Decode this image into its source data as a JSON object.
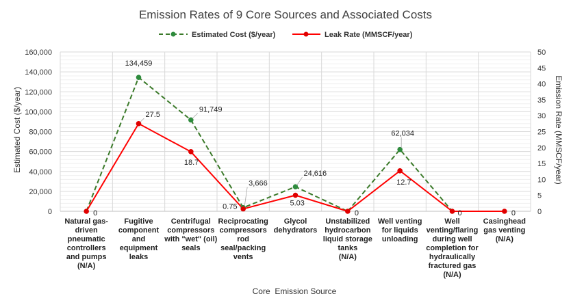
{
  "chart_data": {
    "type": "line",
    "title": "Emission Rates of 9 Core Sources and Associated Costs",
    "xlabel": "Core  Emission Source",
    "ylabel_left": "Estimated Cost ($/year)",
    "ylabel_right": "Emission Rate (MMSCF/year)",
    "ylim_left": [
      0,
      160000
    ],
    "ylim_right": [
      0,
      50
    ],
    "y_ticks_left": [
      "0",
      "20,000",
      "40,000",
      "60,000",
      "80,000",
      "100,000",
      "120,000",
      "140,000",
      "160,000"
    ],
    "y_ticks_right": [
      "0",
      "5",
      "10",
      "15",
      "20",
      "25",
      "30",
      "35",
      "40",
      "45",
      "50"
    ],
    "legend_position": "top-center",
    "grid": true,
    "categories": [
      [
        "Natural gas-",
        "driven",
        "pneumatic",
        "controllers",
        "and pumps",
        "(N/A)"
      ],
      [
        "Fugitive",
        "component",
        "and",
        "equipment",
        "leaks"
      ],
      [
        "Centrifugal",
        "compressors",
        "with \"wet\" (oil)",
        "seals"
      ],
      [
        "Reciprocating",
        "compressors",
        "rod",
        "seal/packing",
        "vents"
      ],
      [
        "Glycol",
        "dehydrators"
      ],
      [
        "Unstabilized",
        "hydrocarbon",
        "liquid storage",
        "tanks",
        "(N/A)"
      ],
      [
        "Well venting",
        "for liquids",
        "unloading"
      ],
      [
        "Well",
        "venting/flaring",
        "during well",
        "completion for",
        "hydraulically",
        "fractured gas",
        "(N/A)"
      ],
      [
        "Casinghead",
        "gas venting",
        "(N/A)"
      ]
    ],
    "series": [
      {
        "name": "Estimated Cost ($/year)",
        "axis": "left",
        "style": "dashed",
        "color": "#3b7a2a",
        "marker_color": "#2e8b3d",
        "values": [
          null,
          134459,
          91749,
          3666,
          24616,
          null,
          62034,
          null,
          null
        ],
        "labels": [
          "",
          "134,459",
          "91,749",
          "3,666",
          "24,616",
          "",
          "62,034",
          "",
          ""
        ]
      },
      {
        "name": "Leak Rate (MMSCF/year)",
        "axis": "right",
        "style": "solid",
        "color": "#ff0000",
        "marker_color": "#e00000",
        "values": [
          0,
          27.5,
          18.7,
          0.75,
          5.03,
          0,
          12.7,
          0,
          0
        ],
        "labels": [
          "0",
          "27.5",
          "18.7",
          "0.75",
          "5.03",
          "0",
          "12.7",
          "0",
          "0"
        ]
      }
    ]
  }
}
